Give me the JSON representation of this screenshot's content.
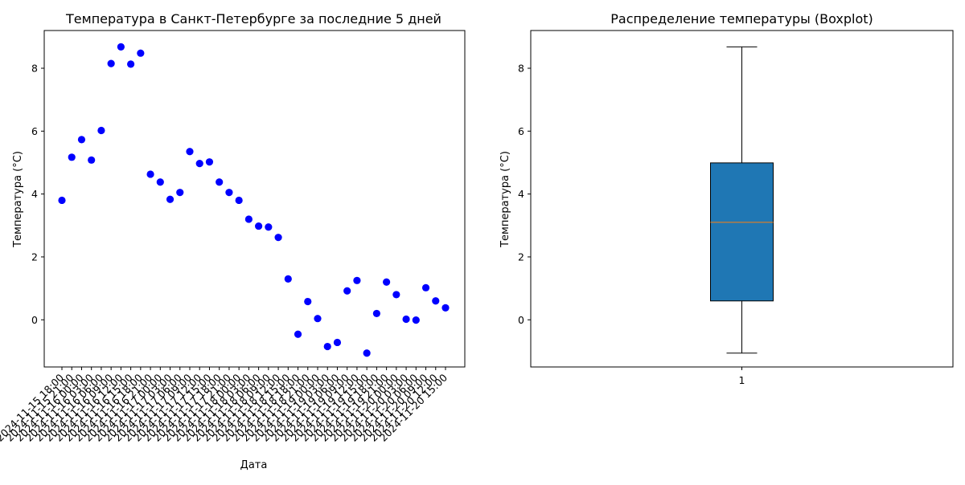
{
  "chart_data": [
    {
      "type": "scatter",
      "title": "Температура в Санкт-Петербурге за последние 5 дней",
      "xlabel": "Дата",
      "ylabel": "Температура (°C)",
      "ylim": [
        -1.5,
        9.2
      ],
      "yticks": [
        0,
        2,
        4,
        6,
        8
      ],
      "grid": false,
      "marker_color": "#0000ff",
      "x": [
        "2024-11-15 18:00",
        "2024-11-15 21:00",
        "2024-11-16 00:00",
        "2024-11-16 03:00",
        "2024-11-16 06:00",
        "2024-11-16 09:00",
        "2024-11-16 12:00",
        "2024-11-16 15:00",
        "2024-11-16 18:00",
        "2024-11-16 21:00",
        "2024-11-17 00:00",
        "2024-11-17 03:00",
        "2024-11-17 06:00",
        "2024-11-17 09:00",
        "2024-11-17 12:00",
        "2024-11-17 15:00",
        "2024-11-17 18:00",
        "2024-11-17 21:00",
        "2024-11-18 00:00",
        "2024-11-18 03:00",
        "2024-11-18 06:00",
        "2024-11-18 09:00",
        "2024-11-18 12:00",
        "2024-11-18 15:00",
        "2024-11-18 18:00",
        "2024-11-18 21:00",
        "2024-11-19 00:00",
        "2024-11-19 03:00",
        "2024-11-19 06:00",
        "2024-11-19 09:00",
        "2024-11-19 12:00",
        "2024-11-19 15:00",
        "2024-11-19 18:00",
        "2024-11-19 21:00",
        "2024-11-20 00:00",
        "2024-11-20 03:00",
        "2024-11-20 06:00",
        "2024-11-20 09:00",
        "2024-11-20 12:00",
        "2024-11-20 15:00"
      ],
      "y": [
        3.8,
        5.17,
        5.73,
        5.08,
        6.02,
        8.15,
        8.68,
        8.13,
        8.48,
        4.63,
        4.38,
        3.83,
        4.05,
        5.35,
        4.97,
        5.02,
        4.38,
        4.05,
        3.8,
        3.2,
        2.98,
        2.95,
        2.62,
        1.3,
        -0.46,
        0.58,
        0.04,
        -0.85,
        -0.72,
        0.92,
        1.25,
        -1.06,
        0.2,
        1.2,
        0.8,
        0.02,
        -0.01,
        1.02,
        0.6,
        0.38
      ]
    },
    {
      "type": "boxplot",
      "title": "Распределение температуры (Boxplot)",
      "xlabel": "",
      "ylabel": "Температура (°C)",
      "ylim": [
        -1.5,
        9.2
      ],
      "yticks": [
        0,
        2,
        4,
        6,
        8
      ],
      "categories": [
        "1"
      ],
      "grid": false,
      "box_color": "#1f77b4",
      "median_color": "#ff7f0e",
      "stats": {
        "min": -1.06,
        "q1": 0.6,
        "median": 3.1,
        "q3": 4.99,
        "max": 8.68
      }
    }
  ]
}
